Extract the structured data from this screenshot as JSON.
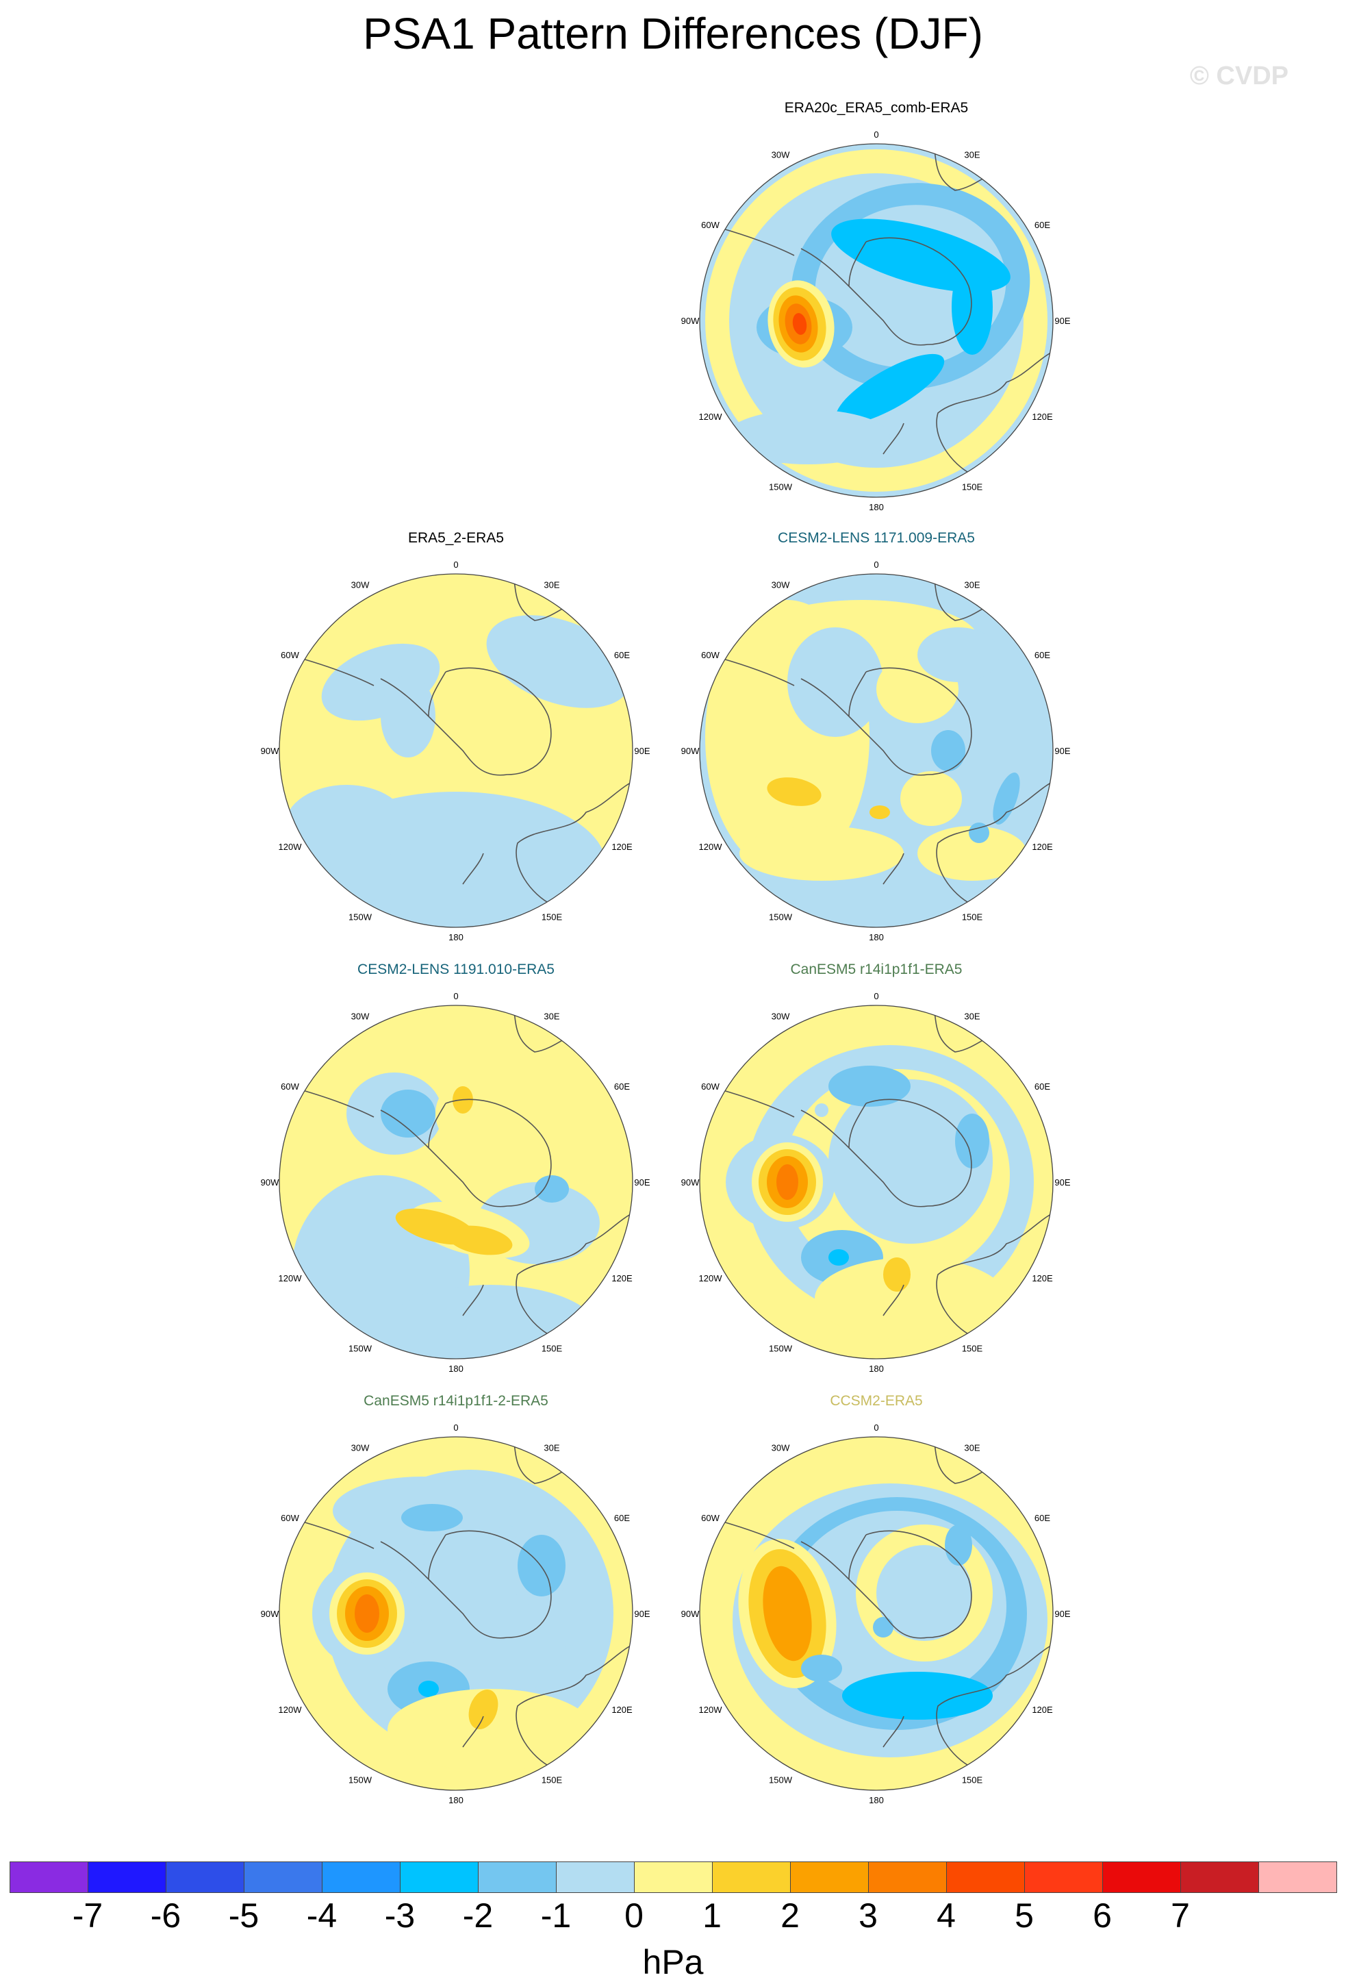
{
  "title": "PSA1 Pattern Differences (DJF)",
  "watermark": "© CVDP",
  "colors": {
    "neg7": "#8a2be2",
    "neg6": "#1f18ff",
    "neg5": "#2d4ee9",
    "neg4": "#3a78ec",
    "neg3": "#1e96ff",
    "neg2": "#00c3ff",
    "neg1": "#74c6f0",
    "zero_neg": "#b3ddf2",
    "zero_pos": "#fef68f",
    "pos1": "#fbd12c",
    "pos2": "#fba100",
    "pos3": "#fb7e00",
    "pos4": "#fb4a00",
    "pos5": "#ff3a14",
    "pos6": "#ea0a0a",
    "pos7": "#c91e24",
    "pos8": "#ffb6b6",
    "title_default": "#000000",
    "title_cesm2": "#17647a",
    "title_canesm5": "#4e7d50",
    "title_ccsm2": "#c8bc60"
  },
  "lon_labels": [
    "0",
    "30E",
    "60E",
    "90E",
    "120E",
    "150E",
    "180",
    "150W",
    "120W",
    "90W",
    "60W",
    "30W"
  ],
  "panels": [
    {
      "id": "era20c",
      "title": "ERA20c_ERA5_comb-ERA5",
      "title_color": "title_default"
    },
    {
      "id": "era5_2",
      "title": "ERA5_2-ERA5",
      "title_color": "title_default"
    },
    {
      "id": "cesm2_1171",
      "title": "CESM2-LENS 1171.009-ERA5",
      "title_color": "title_cesm2"
    },
    {
      "id": "cesm2_1191",
      "title": "CESM2-LENS 1191.010-ERA5",
      "title_color": "title_cesm2"
    },
    {
      "id": "canesm5_r14",
      "title": "CanESM5 r14i1p1f1-ERA5",
      "title_color": "title_canesm5"
    },
    {
      "id": "canesm5_r14_2",
      "title": "CanESM5 r14i1p1f1-2-ERA5",
      "title_color": "title_canesm5"
    },
    {
      "id": "ccsm2",
      "title": "CCSM2-ERA5",
      "title_color": "title_ccsm2"
    }
  ],
  "colorbar": {
    "colors": [
      "neg7",
      "neg6",
      "neg5",
      "neg4",
      "neg3",
      "neg2",
      "neg1",
      "zero_neg",
      "zero_pos",
      "pos1",
      "pos2",
      "pos3",
      "pos4",
      "pos5",
      "pos6",
      "pos7",
      "pos8"
    ],
    "labels": [
      "-7",
      "-6",
      "-5",
      "-4",
      "-3",
      "-2",
      "-1",
      "0",
      "1",
      "2",
      "3",
      "4",
      "5",
      "6",
      "7"
    ],
    "units": "hPa"
  }
}
